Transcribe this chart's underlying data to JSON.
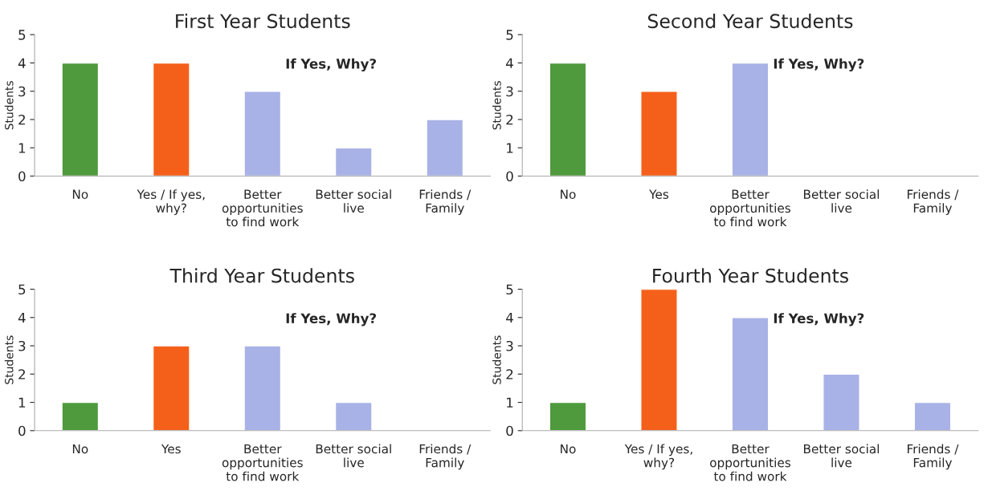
{
  "chart_data": [
    {
      "type": "bar",
      "title": "First Year Students",
      "ylabel": "Students",
      "categories": [
        "No",
        "Yes / If yes, why?",
        "Better opportunities to find work",
        "Better social live",
        "Friends / Family"
      ],
      "values": [
        4,
        4,
        3,
        1,
        2
      ],
      "colors": [
        "#4e9a3c",
        "#f4601a",
        "#a9b2e6",
        "#a9b2e6",
        "#a9b2e6"
      ],
      "ylim": [
        0,
        5
      ],
      "yticks": [
        0,
        1,
        2,
        3,
        4,
        5
      ],
      "annotations": [
        "If Yes, Why?"
      ]
    },
    {
      "type": "bar",
      "title": "Second Year Students",
      "ylabel": "Students",
      "categories": [
        "No",
        "Yes",
        "Better opportunities to find work",
        "Better social live",
        "Friends / Family"
      ],
      "values": [
        4,
        3,
        4,
        null,
        null
      ],
      "colors": [
        "#4e9a3c",
        "#f4601a",
        "#a9b2e6",
        "#a9b2e6",
        "#a9b2e6"
      ],
      "ylim": [
        0,
        5
      ],
      "yticks": [
        0,
        1,
        2,
        3,
        4,
        5
      ],
      "annotations": [
        "If Yes, Why?"
      ]
    },
    {
      "type": "bar",
      "title": "Third Year Students",
      "ylabel": "Students",
      "categories": [
        "No",
        "Yes",
        "Better opportunities to find work",
        "Better social live",
        "Friends / Family"
      ],
      "values": [
        1,
        3,
        3,
        1,
        null
      ],
      "colors": [
        "#4e9a3c",
        "#f4601a",
        "#a9b2e6",
        "#a9b2e6",
        "#a9b2e6"
      ],
      "ylim": [
        0,
        5
      ],
      "yticks": [
        0,
        1,
        2,
        3,
        4,
        5
      ],
      "annotations": [
        "If Yes, Why?"
      ]
    },
    {
      "type": "bar",
      "title": "Fourth Year Students",
      "ylabel": "Students",
      "categories": [
        "No",
        "Yes / If yes, why?",
        "Better opportunities to find work",
        "Better social live",
        "Friends / Family"
      ],
      "values": [
        1,
        5,
        4,
        2,
        1
      ],
      "colors": [
        "#4e9a3c",
        "#f4601a",
        "#a9b2e6",
        "#a9b2e6",
        "#a9b2e6"
      ],
      "ylim": [
        0,
        5
      ],
      "yticks": [
        0,
        1,
        2,
        3,
        4,
        5
      ],
      "annotations": [
        "If Yes, Why?"
      ]
    }
  ]
}
